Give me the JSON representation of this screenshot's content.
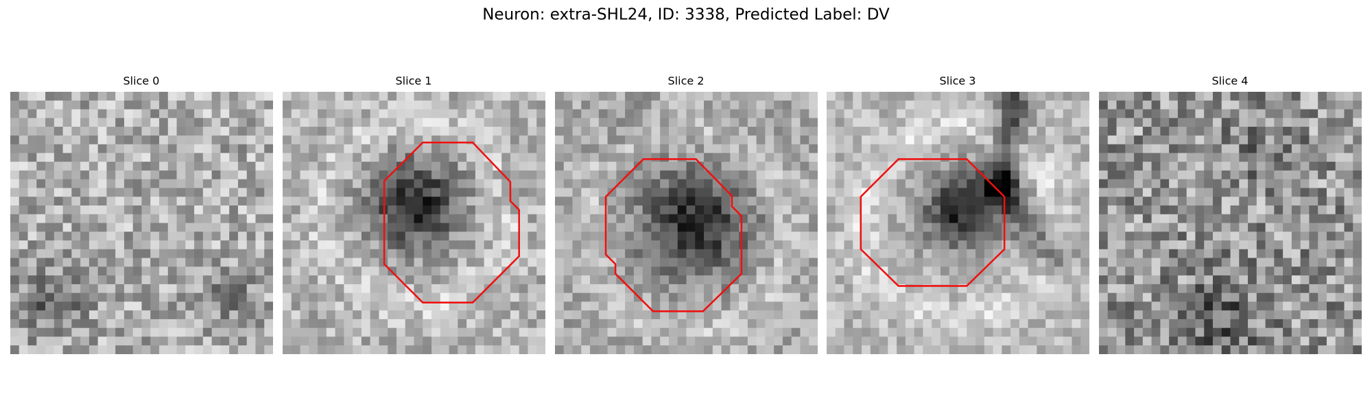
{
  "header": {
    "title": "Neuron: extra-SHL24, ID: 3338, Predicted Label: DV"
  },
  "panels": [
    {
      "label": "Slice 0"
    },
    {
      "label": "Slice 1"
    },
    {
      "label": "Slice 2"
    },
    {
      "label": "Slice 3"
    },
    {
      "label": "Slice 4"
    }
  ]
}
